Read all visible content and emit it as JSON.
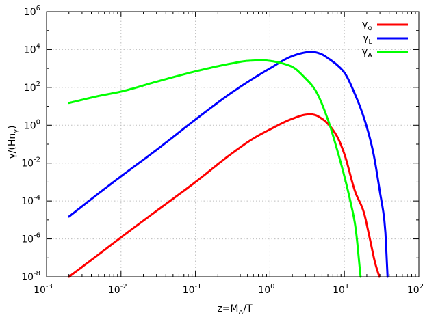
{
  "chart_data": {
    "type": "line",
    "xlabel": {
      "main": "z=M",
      "sub": "Δ",
      "tail": "/T"
    },
    "ylabel": {
      "main": "γ/(Hn",
      "sub": "γ",
      "tail": ")"
    },
    "xscale": "log",
    "yscale": "log",
    "xlim": [
      0.001,
      100
    ],
    "ylim": [
      1e-08,
      1000000
    ],
    "grid": true,
    "legend_position": "top-right",
    "x_ticks": [
      {
        "base": "10",
        "exp": "-3"
      },
      {
        "base": "10",
        "exp": "-2"
      },
      {
        "base": "10",
        "exp": "-1"
      },
      {
        "base": "10",
        "exp": "0"
      },
      {
        "base": "10",
        "exp": "1"
      },
      {
        "base": "10",
        "exp": "2"
      }
    ],
    "y_ticks": [
      {
        "base": "10",
        "exp": "-8"
      },
      {
        "base": "10",
        "exp": "-6"
      },
      {
        "base": "10",
        "exp": "-4"
      },
      {
        "base": "10",
        "exp": "-2"
      },
      {
        "base": "10",
        "exp": "0"
      },
      {
        "base": "10",
        "exp": "2"
      },
      {
        "base": "10",
        "exp": "4"
      },
      {
        "base": "10",
        "exp": "6"
      }
    ],
    "series": [
      {
        "name": "γ",
        "sub": "φ",
        "color": "#ff0000",
        "x": [
          0.002,
          0.005,
          0.01,
          0.03,
          0.1,
          0.3,
          0.6,
          1,
          2,
          3,
          3.5,
          4,
          5,
          6,
          8,
          10,
          14,
          18,
          22,
          26,
          29.5
        ],
        "y": [
          1e-08,
          1.5e-07,
          1.2e-06,
          3e-05,
          0.001,
          0.03,
          0.2,
          0.6,
          2.2,
          3.6,
          3.8,
          3.5,
          2.2,
          1.2,
          0.25,
          0.03,
          0.0003,
          3e-05,
          1e-06,
          5e-08,
          1e-08
        ]
      },
      {
        "name": "γ",
        "sub": "L",
        "color": "#0000ff",
        "x": [
          0.002,
          0.005,
          0.01,
          0.03,
          0.1,
          0.3,
          0.6,
          1,
          2,
          3,
          3.5,
          4,
          5,
          6,
          8,
          10,
          14,
          18,
          24,
          30,
          35,
          38
        ],
        "y": [
          1.5e-05,
          0.00025,
          0.002,
          0.05,
          2,
          50,
          300,
          1000,
          4500,
          7000,
          7500,
          7200,
          5500,
          3500,
          1500,
          600,
          40,
          3,
          0.05,
          0.0003,
          5e-06,
          1e-08
        ]
      },
      {
        "name": "γ",
        "sub": "A",
        "color": "#00ff00",
        "x": [
          0.002,
          0.005,
          0.01,
          0.03,
          0.1,
          0.3,
          0.5,
          0.8,
          1,
          1.5,
          2,
          3,
          4,
          6,
          8,
          10,
          12,
          14,
          16.5
        ],
        "y": [
          15,
          35,
          60,
          200,
          700,
          1800,
          2500,
          2700,
          2500,
          1800,
          1200,
          300,
          80,
          2,
          0.05,
          0.002,
          0.0001,
          5e-06,
          1e-08
        ]
      }
    ]
  }
}
